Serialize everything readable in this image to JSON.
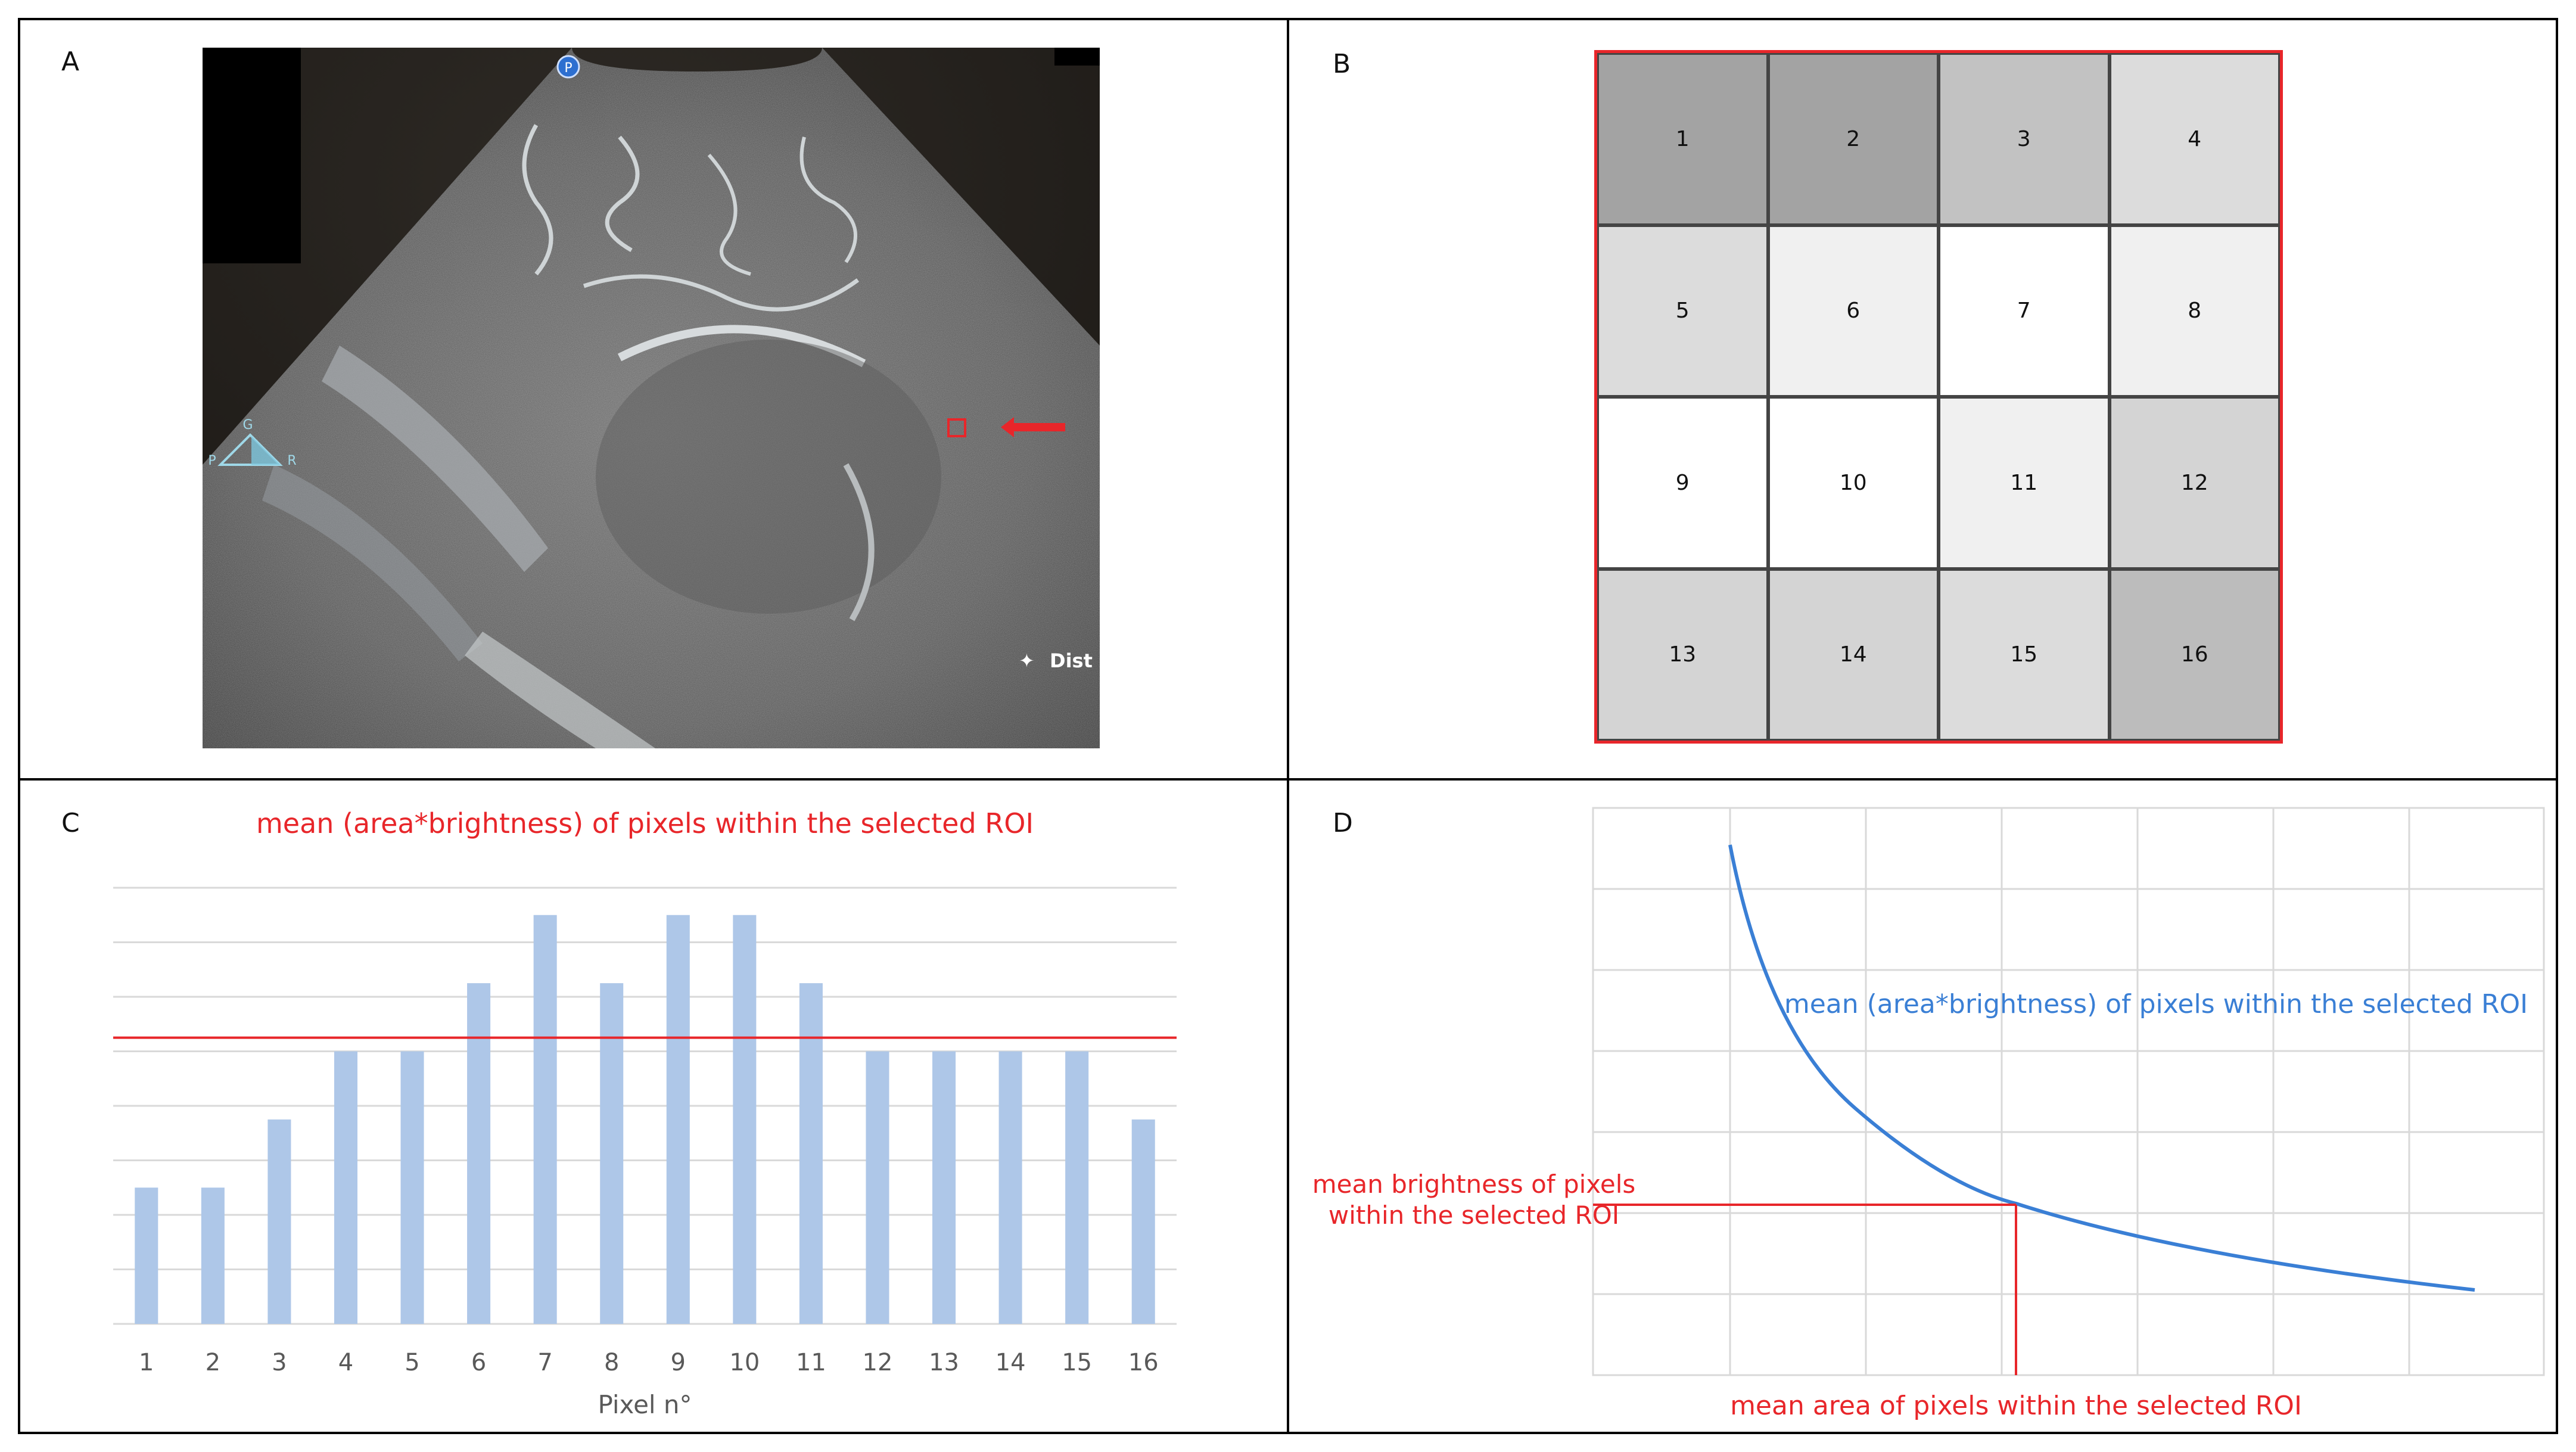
{
  "panels": {
    "a": {
      "letter": "A",
      "us_annotation": "Dist",
      "probe_marker": "P",
      "orientation": {
        "top": "G",
        "left": "P",
        "right": "R"
      }
    },
    "b": {
      "letter": "B",
      "cells": [
        {
          "label": "1",
          "shade": "#a3a3a3"
        },
        {
          "label": "2",
          "shade": "#a3a3a3"
        },
        {
          "label": "3",
          "shade": "#c2c2c2"
        },
        {
          "label": "4",
          "shade": "#dcdcdc"
        },
        {
          "label": "5",
          "shade": "#dcdcdc"
        },
        {
          "label": "6",
          "shade": "#f0f0f0"
        },
        {
          "label": "7",
          "shade": "#ffffff"
        },
        {
          "label": "8",
          "shade": "#f0f0f0"
        },
        {
          "label": "9",
          "shade": "#ffffff"
        },
        {
          "label": "10",
          "shade": "#ffffff"
        },
        {
          "label": "11",
          "shade": "#f0f0f0"
        },
        {
          "label": "12",
          "shade": "#d4d4d4"
        },
        {
          "label": "13",
          "shade": "#d4d4d4"
        },
        {
          "label": "14",
          "shade": "#d4d4d4"
        },
        {
          "label": "15",
          "shade": "#dcdcdc"
        },
        {
          "label": "16",
          "shade": "#bcbcbc"
        }
      ]
    },
    "c": {
      "letter": "C"
    },
    "d": {
      "letter": "D",
      "curve_label": "mean (area*brightness) of pixels within the selected ROI",
      "y_marker_label_1": "mean brightness of pixels",
      "y_marker_label_2": "within the selected ROI",
      "x_marker_label": "mean area of pixels within the selected ROI"
    }
  },
  "chart_data": {
    "type": "bar",
    "title": "mean (area*brightness) of pixels within the selected ROI",
    "xlabel": "Pixel n°",
    "ylabel": "",
    "categories": [
      "1",
      "2",
      "3",
      "4",
      "5",
      "6",
      "7",
      "8",
      "9",
      "10",
      "11",
      "12",
      "13",
      "14",
      "15",
      "16"
    ],
    "values": [
      2,
      2,
      3,
      4,
      4,
      5,
      6,
      5,
      6,
      6,
      5,
      4,
      4,
      4,
      4,
      3
    ],
    "mean_line": 4.2,
    "ylim": [
      0,
      6.4
    ],
    "grid": true,
    "colors": {
      "bar": "#aec7e8",
      "mean_line": "#e8262a",
      "grid": "#d9d9d9"
    }
  },
  "colors": {
    "accent_red": "#e8262a",
    "curve_blue": "#3a7fd5"
  }
}
